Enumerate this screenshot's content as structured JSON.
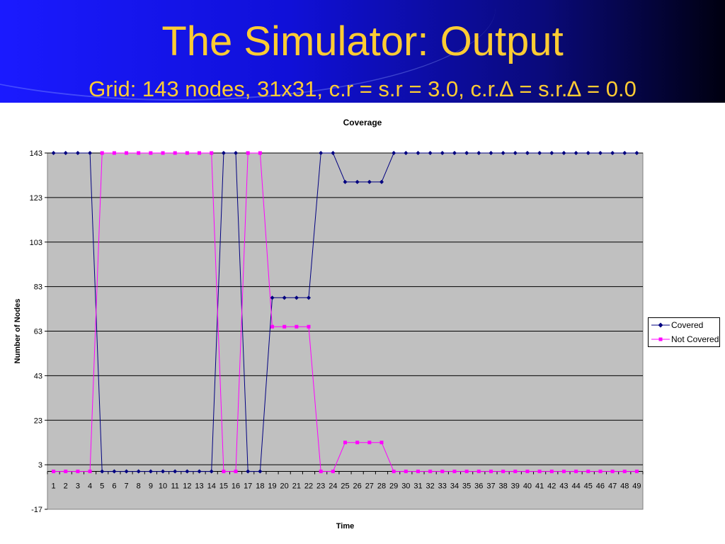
{
  "slide": {
    "title": "The Simulator: Output",
    "subtitle": "Grid: 143 nodes, 31x31, c.r = s.r = 3.0, c.r.∆ = s.r.∆ = 0.0"
  },
  "colors": {
    "covered": "#000080",
    "not_covered": "#ff00ff",
    "plot_bg": "#c0c0c0",
    "title_text": "#ffcc33"
  },
  "chart_data": {
    "type": "line",
    "title": "Coverage",
    "xlabel": "Time",
    "ylabel": "Number of Nodes",
    "ylim": [
      -17,
      143
    ],
    "yticks": [
      -17,
      3,
      23,
      43,
      63,
      83,
      103,
      123,
      143
    ],
    "grid": "horizontal",
    "legend_position": "right",
    "x": [
      1,
      2,
      3,
      4,
      5,
      6,
      7,
      8,
      9,
      10,
      11,
      12,
      13,
      14,
      15,
      16,
      17,
      18,
      19,
      20,
      21,
      22,
      23,
      24,
      25,
      26,
      27,
      28,
      29,
      30,
      31,
      32,
      33,
      34,
      35,
      36,
      37,
      38,
      39,
      40,
      41,
      42,
      43,
      44,
      45,
      46,
      47,
      48,
      49
    ],
    "series": [
      {
        "name": "Covered",
        "color": "#000080",
        "marker": "diamond",
        "values": [
          143,
          143,
          143,
          143,
          0,
          0,
          0,
          0,
          0,
          0,
          0,
          0,
          0,
          0,
          143,
          143,
          0,
          0,
          78,
          78,
          78,
          78,
          143,
          143,
          130,
          130,
          130,
          130,
          143,
          143,
          143,
          143,
          143,
          143,
          143,
          143,
          143,
          143,
          143,
          143,
          143,
          143,
          143,
          143,
          143,
          143,
          143,
          143,
          143
        ]
      },
      {
        "name": "Not Covered",
        "color": "#ff00ff",
        "marker": "square",
        "values": [
          0,
          0,
          0,
          0,
          143,
          143,
          143,
          143,
          143,
          143,
          143,
          143,
          143,
          143,
          0,
          0,
          143,
          143,
          65,
          65,
          65,
          65,
          0,
          0,
          13,
          13,
          13,
          13,
          0,
          0,
          0,
          0,
          0,
          0,
          0,
          0,
          0,
          0,
          0,
          0,
          0,
          0,
          0,
          0,
          0,
          0,
          0,
          0,
          0
        ]
      }
    ]
  }
}
